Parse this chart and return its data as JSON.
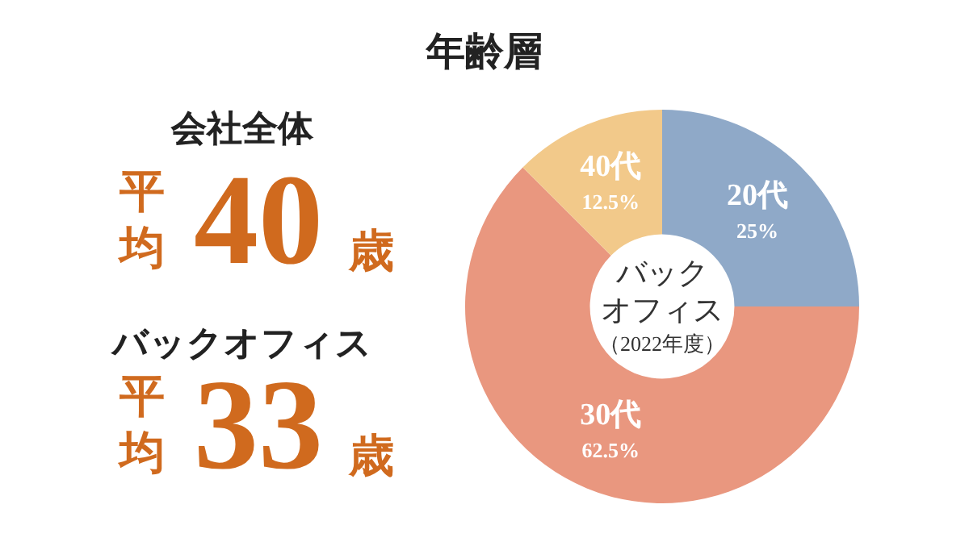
{
  "chart_data": [
    {
      "type": "other",
      "annotations": [
        "会社全体",
        "平均",
        "40",
        "歳",
        "バックオフィス",
        "平均",
        "33",
        "歳"
      ]
    },
    {
      "type": "donut",
      "title": "年齢層",
      "categories": [
        "20代",
        "30代",
        "40代"
      ],
      "values": [
        25,
        62.5,
        12.5
      ],
      "colors": [
        "#8fa9c8",
        "#e9977f",
        "#f2c98a"
      ],
      "value_labels": [
        "25%",
        "62.5%",
        "12.5%"
      ],
      "annotations": [
        "バック",
        "オフィス",
        "（2022年度）"
      ]
    }
  ]
}
